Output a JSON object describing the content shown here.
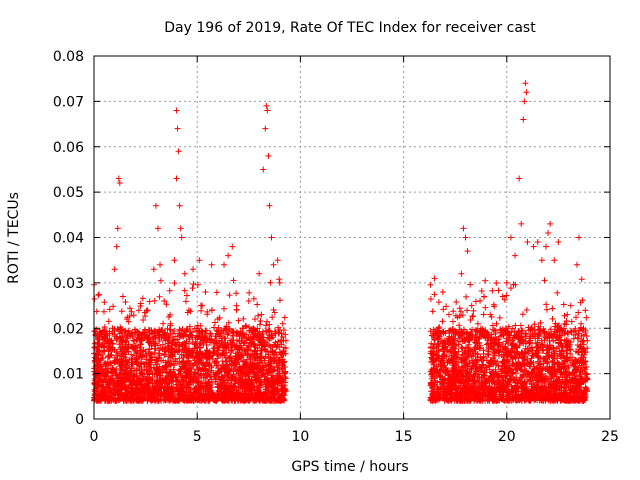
{
  "chart_data": {
    "type": "scatter",
    "title": "Day 196 of 2019, Rate Of TEC Index for receiver cast",
    "xlabel": "GPS time / hours",
    "ylabel": "ROTI / TECUs",
    "xlim": [
      0,
      25
    ],
    "ylim": [
      0,
      0.08
    ],
    "x_ticks": [
      0,
      5,
      10,
      15,
      20,
      25
    ],
    "y_ticks": [
      0,
      0.01,
      0.02,
      0.03,
      0.04,
      0.05,
      0.06,
      0.07,
      0.08
    ],
    "x_tick_labels": [
      "0",
      "5",
      "10",
      "15",
      "20",
      "25"
    ],
    "y_tick_labels": [
      "0",
      "0.01",
      "0.02",
      "0.03",
      "0.04",
      "0.05",
      "0.06",
      "0.07",
      "0.08"
    ],
    "grid": true,
    "marker": "+",
    "marker_color": "#ff0000",
    "series": [
      {
        "name": "ROTI",
        "points": [
          [
            0.1,
            0.01
          ],
          [
            0.3,
            0.012
          ],
          [
            0.5,
            0.018
          ],
          [
            0.7,
            0.015
          ],
          [
            0.9,
            0.02
          ],
          [
            1.0,
            0.033
          ],
          [
            1.1,
            0.038
          ],
          [
            1.15,
            0.042
          ],
          [
            1.2,
            0.053
          ],
          [
            1.25,
            0.052
          ],
          [
            1.4,
            0.027
          ],
          [
            1.6,
            0.022
          ],
          [
            1.8,
            0.016
          ],
          [
            2.0,
            0.019
          ],
          [
            2.3,
            0.014
          ],
          [
            2.6,
            0.024
          ],
          [
            2.9,
            0.033
          ],
          [
            3.0,
            0.047
          ],
          [
            3.1,
            0.042
          ],
          [
            3.2,
            0.034
          ],
          [
            3.4,
            0.026
          ],
          [
            3.7,
            0.021
          ],
          [
            3.9,
            0.035
          ],
          [
            4.0,
            0.068
          ],
          [
            4.05,
            0.064
          ],
          [
            4.1,
            0.059
          ],
          [
            4.0,
            0.053
          ],
          [
            4.15,
            0.047
          ],
          [
            4.2,
            0.042
          ],
          [
            4.25,
            0.04
          ],
          [
            4.4,
            0.032
          ],
          [
            4.6,
            0.024
          ],
          [
            4.8,
            0.033
          ],
          [
            5.1,
            0.035
          ],
          [
            5.4,
            0.028
          ],
          [
            5.7,
            0.034
          ],
          [
            6.0,
            0.022
          ],
          [
            6.3,
            0.034
          ],
          [
            6.5,
            0.036
          ],
          [
            6.7,
            0.038
          ],
          [
            6.9,
            0.025
          ],
          [
            7.2,
            0.02
          ],
          [
            7.5,
            0.026
          ],
          [
            7.8,
            0.022
          ],
          [
            8.0,
            0.032
          ],
          [
            8.2,
            0.055
          ],
          [
            8.3,
            0.064
          ],
          [
            8.35,
            0.069
          ],
          [
            8.4,
            0.068
          ],
          [
            8.45,
            0.058
          ],
          [
            8.5,
            0.047
          ],
          [
            8.6,
            0.04
          ],
          [
            8.7,
            0.034
          ],
          [
            8.9,
            0.035
          ],
          [
            9.0,
            0.03
          ],
          [
            9.2,
            0.015
          ],
          [
            16.5,
            0.031
          ],
          [
            16.7,
            0.02
          ],
          [
            16.9,
            0.028
          ],
          [
            17.2,
            0.023
          ],
          [
            17.5,
            0.019
          ],
          [
            17.8,
            0.032
          ],
          [
            17.9,
            0.042
          ],
          [
            18.0,
            0.04
          ],
          [
            18.1,
            0.037
          ],
          [
            18.3,
            0.025
          ],
          [
            18.6,
            0.021
          ],
          [
            18.9,
            0.027
          ],
          [
            19.2,
            0.023
          ],
          [
            19.5,
            0.021
          ],
          [
            19.8,
            0.027
          ],
          [
            20.0,
            0.03
          ],
          [
            20.2,
            0.04
          ],
          [
            20.4,
            0.036
          ],
          [
            20.6,
            0.053
          ],
          [
            20.7,
            0.043
          ],
          [
            20.8,
            0.066
          ],
          [
            20.85,
            0.07
          ],
          [
            20.9,
            0.074
          ],
          [
            20.95,
            0.072
          ],
          [
            21.0,
            0.039
          ],
          [
            21.3,
            0.038
          ],
          [
            21.5,
            0.039
          ],
          [
            21.7,
            0.035
          ],
          [
            21.9,
            0.038
          ],
          [
            22.0,
            0.041
          ],
          [
            22.1,
            0.043
          ],
          [
            22.3,
            0.035
          ],
          [
            22.5,
            0.039
          ],
          [
            22.8,
            0.021
          ],
          [
            23.1,
            0.025
          ],
          [
            23.4,
            0.034
          ],
          [
            23.5,
            0.04
          ],
          [
            23.6,
            0.021
          ],
          [
            23.8,
            0.011
          ]
        ],
        "dense_segments": [
          {
            "x_range": [
              0,
              9.3
            ],
            "y_base": [
              0.004,
              0.02
            ]
          },
          {
            "x_range": [
              16.3,
              23.9
            ],
            "y_base": [
              0.004,
              0.02
            ]
          }
        ]
      }
    ]
  }
}
